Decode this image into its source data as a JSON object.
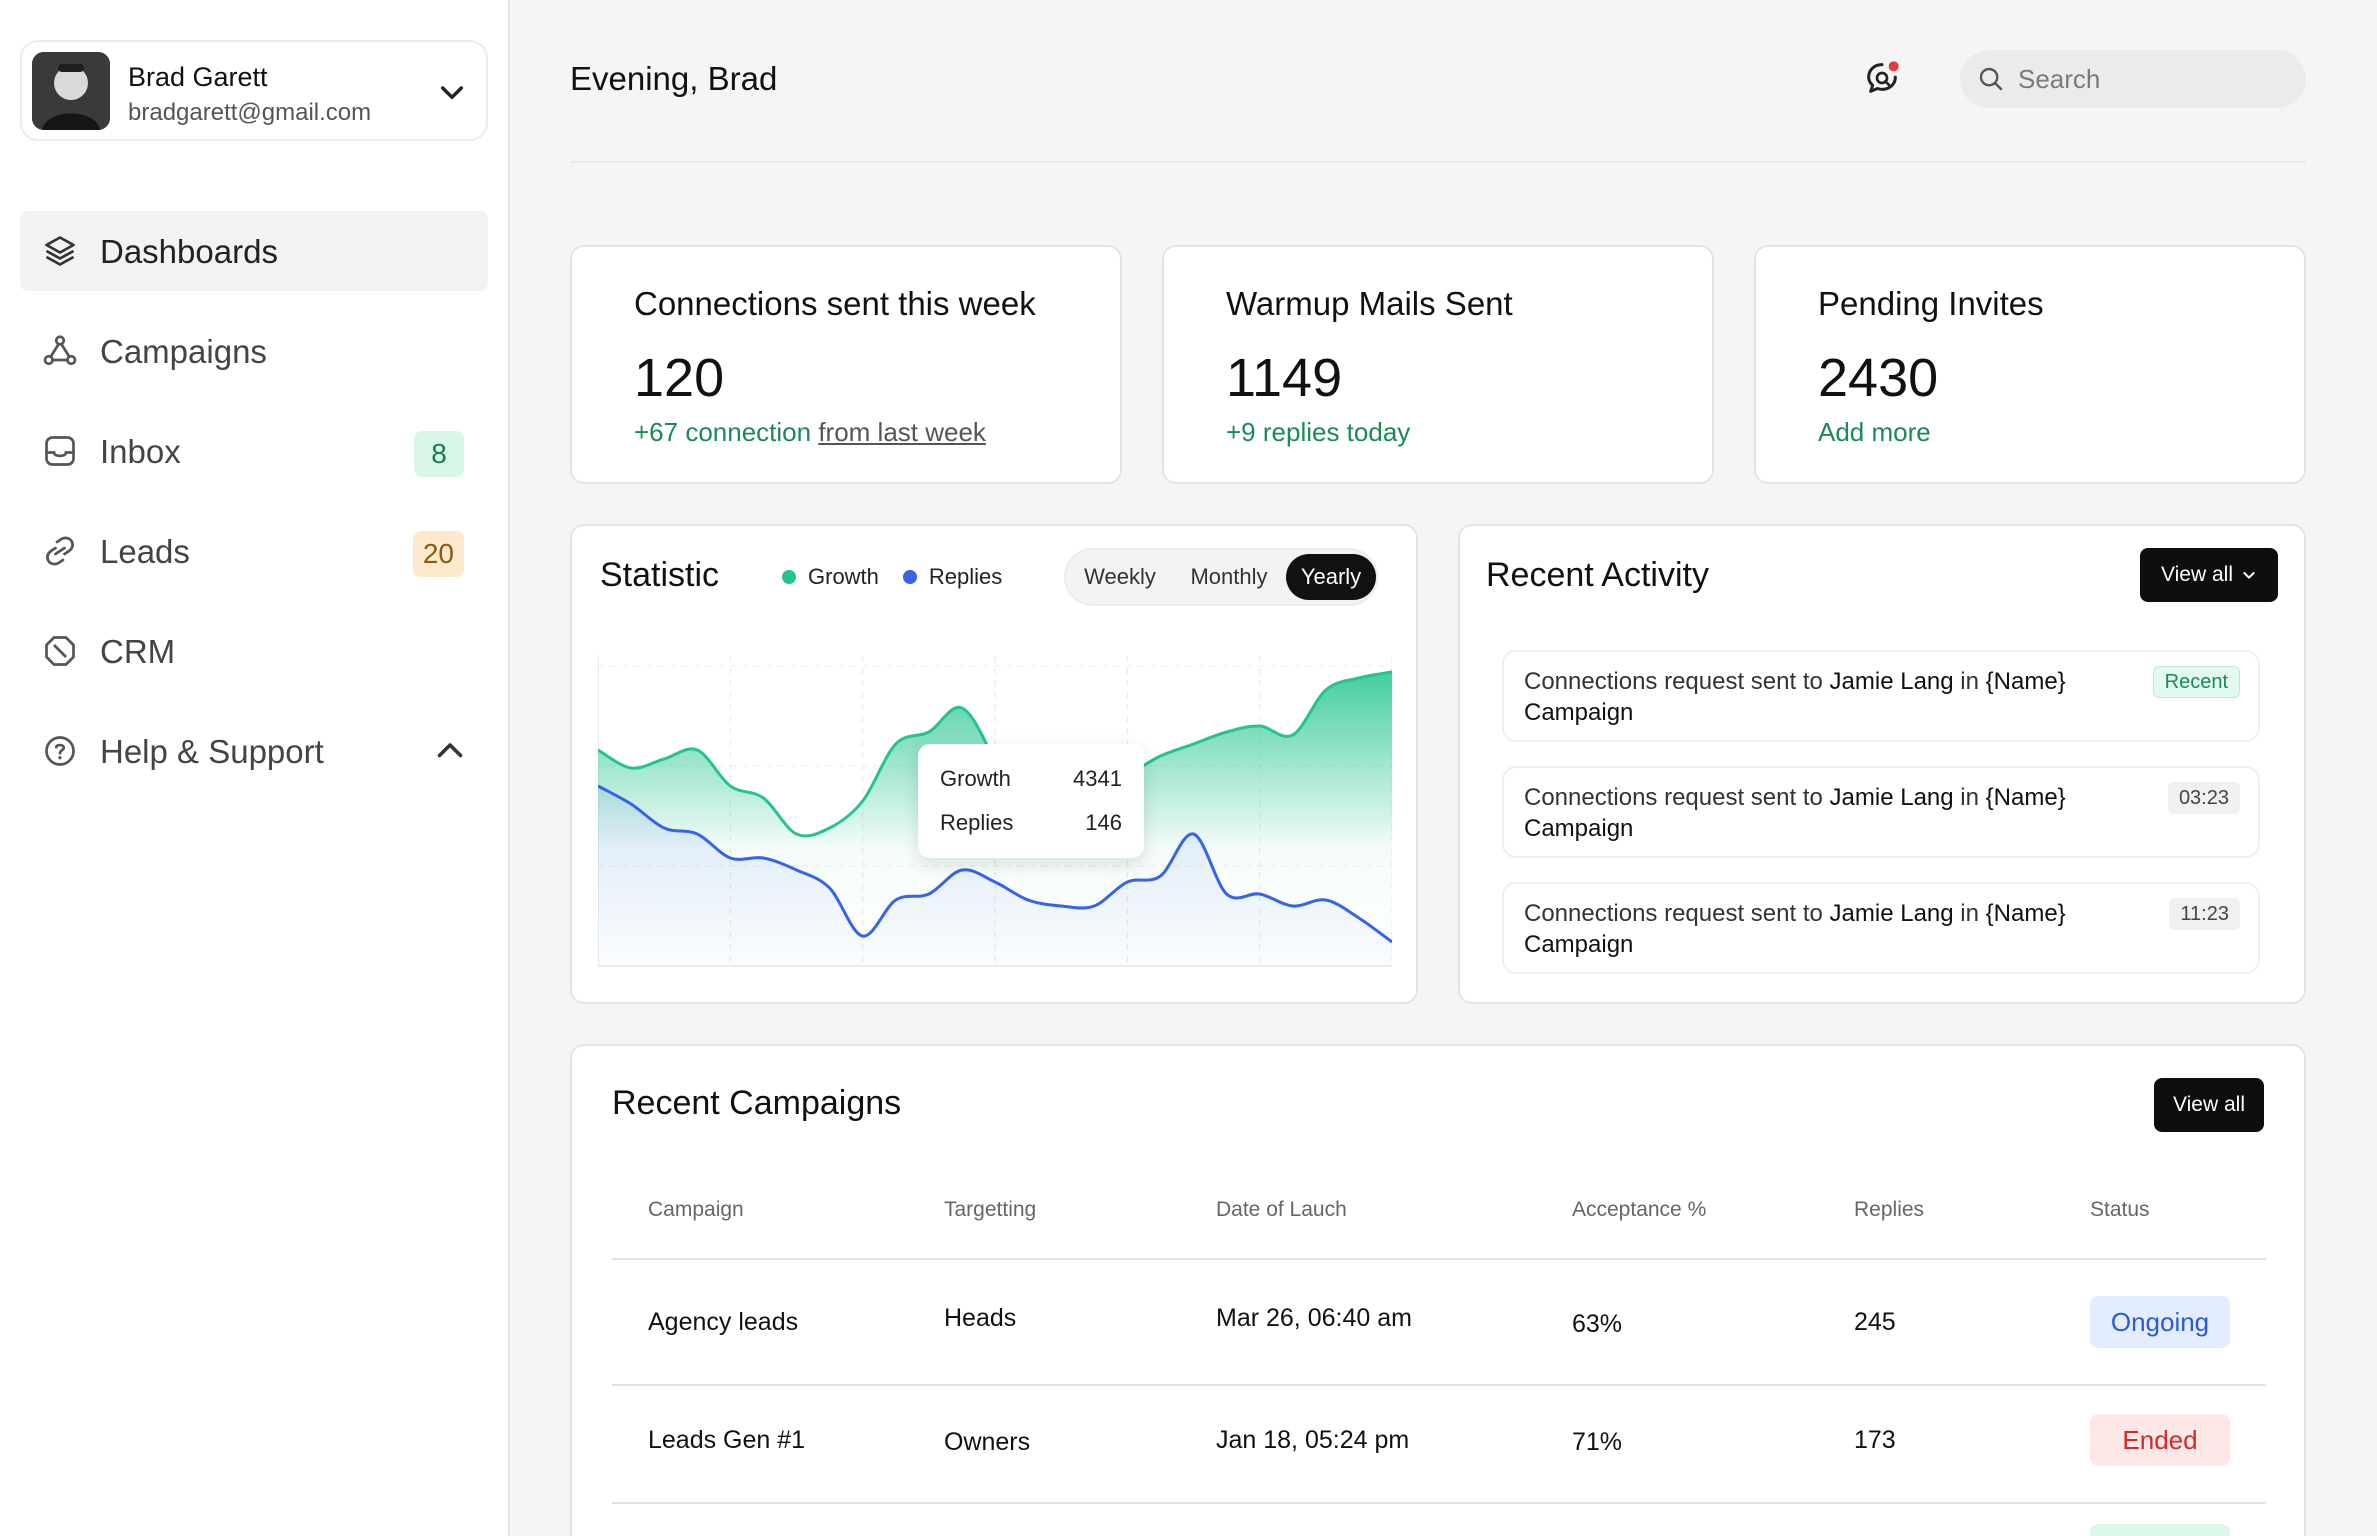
{
  "user": {
    "name": "Brad Garett",
    "email": "bradgarett@gmail.com"
  },
  "nav": [
    {
      "label": "Dashboards",
      "icon": "layers-icon",
      "active": true
    },
    {
      "label": "Campaigns",
      "icon": "nodes-icon"
    },
    {
      "label": "Inbox",
      "icon": "inbox-icon",
      "badge": "8"
    },
    {
      "label": "Leads",
      "icon": "link-icon",
      "badge": "20"
    },
    {
      "label": "CRM",
      "icon": "crm-icon"
    },
    {
      "label": "Help & Support",
      "icon": "help-icon"
    }
  ],
  "header": {
    "greeting": "Evening, Brad",
    "search_placeholder": "Search"
  },
  "stats": [
    {
      "title": "Connections sent this week",
      "value": "120",
      "sub": "+67 connection",
      "sub_muted": "from last week"
    },
    {
      "title": "Warmup Mails Sent",
      "value": "1149",
      "sub": "+9 replies today"
    },
    {
      "title": "Pending Invites",
      "value": "2430",
      "sub": "Add more"
    }
  ],
  "statistic": {
    "title": "Statistic",
    "legend": [
      "Growth",
      "Replies"
    ],
    "periods": [
      "Weekly",
      "Monthly",
      "Yearly"
    ],
    "active_period": "Yearly",
    "tooltip": {
      "growth_label": "Growth",
      "growth_value": "4341",
      "replies_label": "Replies",
      "replies_value": "146"
    }
  },
  "chart_data": {
    "type": "area",
    "x": [
      0,
      1,
      2,
      3,
      4,
      5,
      6,
      7,
      8,
      9,
      10,
      11,
      12,
      13,
      14,
      15,
      16,
      17,
      18,
      19,
      20,
      21,
      22,
      23,
      24
    ],
    "series": [
      {
        "name": "Growth",
        "color": "#22c58b",
        "values": [
          72,
          66,
          69,
          72,
          60,
          56,
          44,
          46,
          55,
          74,
          78,
          86,
          68,
          40,
          64,
          62,
          64,
          70,
          74,
          78,
          80,
          77,
          92,
          96,
          98
        ]
      },
      {
        "name": "Replies",
        "color": "#3563e9",
        "values": [
          60,
          54,
          46,
          44,
          36,
          36,
          32,
          26,
          10,
          22,
          24,
          32,
          28,
          22,
          20,
          20,
          28,
          30,
          44,
          24,
          24,
          20,
          22,
          16,
          8
        ]
      }
    ],
    "grid": true,
    "legend_position": "top",
    "ylim": [
      0,
      100
    ]
  },
  "recent_activity": {
    "title": "Recent Activity",
    "view_all": "View all",
    "items": [
      {
        "prefix": "Connections request sent to ",
        "person": "Jamie Lang",
        "mid": " in ",
        "name_tag": "{Name}",
        "suffix": "Campaign",
        "badge": "Recent",
        "badge_type": "recent"
      },
      {
        "prefix": "Connections request sent to ",
        "person": "Jamie Lang",
        "mid": " in ",
        "name_tag": "{Name}",
        "suffix": "Campaign",
        "badge": "03:23",
        "badge_type": "time"
      },
      {
        "prefix": "Connections request sent to ",
        "person": "Jamie Lang",
        "mid": " in ",
        "name_tag": "{Name}",
        "suffix": "Campaign",
        "badge": "11:23",
        "badge_type": "time"
      }
    ]
  },
  "recent_campaigns": {
    "title": "Recent Campaigns",
    "view_all": "View all",
    "columns": [
      "Campaign",
      "Targetting",
      "Date of Lauch",
      "Acceptance %",
      "Replies",
      "Status"
    ],
    "rows": [
      {
        "campaign": "Agency leads",
        "targetting": "Heads",
        "date": "Mar 26, 06:40 am",
        "acceptance": "63%",
        "replies": "245",
        "status": "Ongoing",
        "status_type": "ongoing"
      },
      {
        "campaign": "Leads Gen #1",
        "targetting": "Owners",
        "date": "Jan 18, 05:24 pm",
        "acceptance": "71%",
        "replies": "173",
        "status": "Ended",
        "status_type": "ended"
      }
    ]
  },
  "colors": {
    "growth": "#22c58b",
    "replies": "#3563e9",
    "accent_green": "#1b8a56"
  }
}
